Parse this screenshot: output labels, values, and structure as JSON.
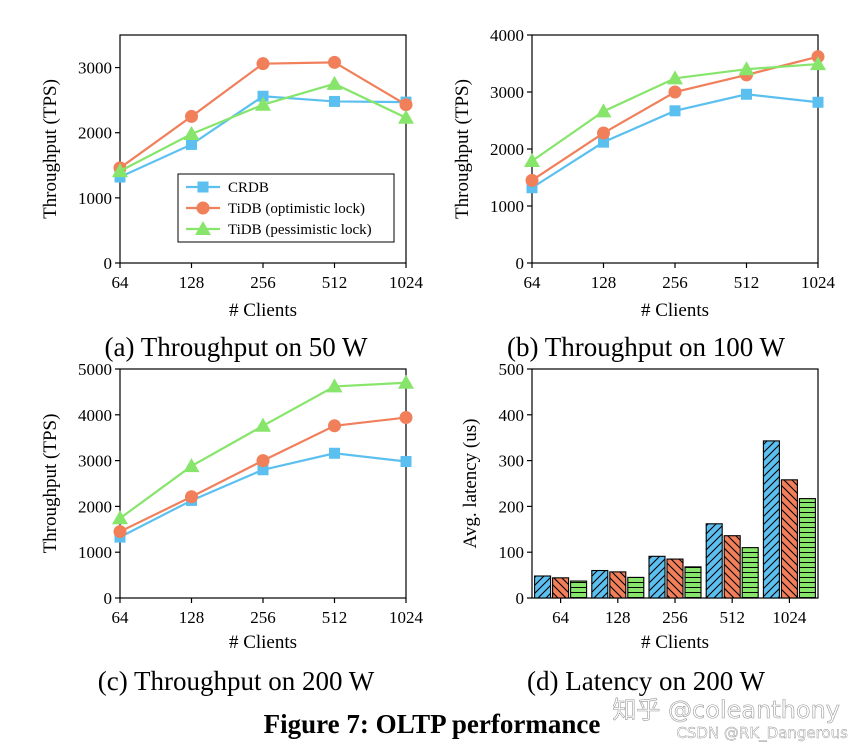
{
  "figure_caption": "Figure 7: OLTP performance",
  "watermark": {
    "site": "知乎 @coleanthony",
    "credit": "CSDN @RK_Dangerous"
  },
  "colors": {
    "CRDB": "#5bc0f0",
    "TiDB (optimistic lock)": "#f07f5a",
    "TiDB (pessimistic lock)": "#86e56a"
  },
  "chart_data": [
    {
      "type": "line",
      "caption": "(a) Throughput on 50 W",
      "xlabel": "# Clients",
      "ylabel": "Throughput (TPS)",
      "categories": [
        "64",
        "128",
        "256",
        "512",
        "1024"
      ],
      "ylim": [
        0,
        3500
      ],
      "yticks": [
        0,
        1000,
        2000,
        3000
      ],
      "legend": "center",
      "series": [
        {
          "name": "CRDB",
          "marker": "square",
          "values": [
            1320,
            1820,
            2560,
            2480,
            2470
          ]
        },
        {
          "name": "TiDB (optimistic lock)",
          "marker": "circle",
          "values": [
            1460,
            2250,
            3060,
            3080,
            2430
          ]
        },
        {
          "name": "TiDB (pessimistic lock)",
          "marker": "triangle",
          "values": [
            1410,
            1980,
            2430,
            2750,
            2230
          ]
        }
      ]
    },
    {
      "type": "line",
      "caption": "(b) Throughput on 100 W",
      "xlabel": "# Clients",
      "ylabel": "Throughput (TPS)",
      "categories": [
        "64",
        "128",
        "256",
        "512",
        "1024"
      ],
      "ylim": [
        0,
        4000
      ],
      "yticks": [
        0,
        1000,
        2000,
        3000,
        4000
      ],
      "series": [
        {
          "name": "CRDB",
          "marker": "square",
          "values": [
            1320,
            2120,
            2670,
            2960,
            2820
          ]
        },
        {
          "name": "TiDB (optimistic lock)",
          "marker": "circle",
          "values": [
            1450,
            2280,
            3000,
            3300,
            3620
          ]
        },
        {
          "name": "TiDB (pessimistic lock)",
          "marker": "triangle",
          "values": [
            1790,
            2660,
            3240,
            3400,
            3490
          ]
        }
      ]
    },
    {
      "type": "line",
      "caption": "(c) Throughput on 200 W",
      "xlabel": "# Clients",
      "ylabel": "Throughput (TPS)",
      "categories": [
        "64",
        "128",
        "256",
        "512",
        "1024"
      ],
      "ylim": [
        0,
        5000
      ],
      "yticks": [
        0,
        1000,
        2000,
        3000,
        4000,
        5000
      ],
      "series": [
        {
          "name": "CRDB",
          "marker": "square",
          "values": [
            1330,
            2130,
            2800,
            3160,
            2980
          ]
        },
        {
          "name": "TiDB (optimistic lock)",
          "marker": "circle",
          "values": [
            1450,
            2210,
            3000,
            3760,
            3940
          ]
        },
        {
          "name": "TiDB (pessimistic lock)",
          "marker": "triangle",
          "values": [
            1740,
            2880,
            3760,
            4620,
            4700
          ]
        }
      ]
    },
    {
      "type": "bar",
      "caption": "(d) Latency on 200 W",
      "xlabel": "# Clients",
      "ylabel": "Avg. latency (us)",
      "categories": [
        "64",
        "128",
        "256",
        "512",
        "1024"
      ],
      "ylim": [
        0,
        500
      ],
      "yticks": [
        0,
        100,
        200,
        300,
        400,
        500
      ],
      "series": [
        {
          "name": "CRDB",
          "pattern": "forward-hatch",
          "values": [
            48,
            60,
            91,
            162,
            343
          ]
        },
        {
          "name": "TiDB (optimistic lock)",
          "pattern": "back-hatch",
          "values": [
            44,
            57,
            85,
            136,
            258
          ]
        },
        {
          "name": "TiDB (pessimistic lock)",
          "pattern": "horizontal-hatch",
          "values": [
            37,
            45,
            68,
            110,
            217
          ]
        }
      ]
    }
  ]
}
